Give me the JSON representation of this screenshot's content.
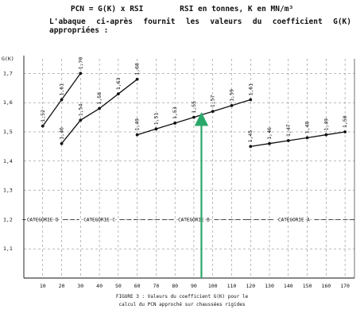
{
  "header": {
    "formula": "PCN = G(K) x RSI",
    "units": "RSI en tonnes, K en MN/m³",
    "intro_line1": "L'abaque ci-après fournit les valeurs du coefficient G(K)",
    "intro_line2": "appropriées :"
  },
  "caption": {
    "line1": "FIGURE 3 : Valeurs du coefficient G(K) pour le",
    "line2": "calcul du PCN approché sur chaussées rigides"
  },
  "chart_data": {
    "type": "line",
    "ylabel": "G(K)",
    "xlabel": "",
    "xlim": [
      0,
      175
    ],
    "ylim": [
      1.0,
      1.75
    ],
    "x_ticks": [
      10,
      20,
      30,
      40,
      50,
      60,
      70,
      80,
      90,
      100,
      110,
      120,
      130,
      140,
      150,
      160,
      170
    ],
    "y_ticks": [
      "1,1",
      "1,2",
      "1,3",
      "1,4",
      "1,5",
      "1,6",
      "1,7"
    ],
    "grid": true,
    "grid_style": "dashed",
    "line_color": "#111111",
    "arrow_color": "#2aa86a",
    "categories_row": {
      "y": 1.2,
      "labels": [
        {
          "label": "CATEGORIE D",
          "x": 10,
          "x_from": 0,
          "x_to": 28
        },
        {
          "label": "CATEGORIE C",
          "x": 40,
          "x_from": 28,
          "x_to": 58
        },
        {
          "label": "CATEGORIE B",
          "x": 90,
          "x_from": 58,
          "x_to": 118
        },
        {
          "label": "CATEGORIE A",
          "x": 143,
          "x_from": 118,
          "x_to": 175
        }
      ]
    },
    "series": [
      {
        "points": [
          {
            "x": 10,
            "y": 1.52,
            "label": "1,52"
          },
          {
            "x": 20,
            "y": 1.61,
            "label": "1,61"
          },
          {
            "x": 30,
            "y": 1.7,
            "label": "1,70"
          }
        ]
      },
      {
        "points": [
          {
            "x": 20,
            "y": 1.46,
            "label": "1,46"
          },
          {
            "x": 30,
            "y": 1.54,
            "label": "1,54"
          },
          {
            "x": 40,
            "y": 1.58,
            "label": "1,58"
          },
          {
            "x": 50,
            "y": 1.63,
            "label": "1,63"
          },
          {
            "x": 60,
            "y": 1.68,
            "label": "1,68"
          }
        ]
      },
      {
        "points": [
          {
            "x": 60,
            "y": 1.49,
            "label": "1,49"
          },
          {
            "x": 70,
            "y": 1.51,
            "label": "1,51"
          },
          {
            "x": 80,
            "y": 1.53,
            "label": "1,53"
          },
          {
            "x": 90,
            "y": 1.55,
            "label": "1,55"
          },
          {
            "x": 100,
            "y": 1.57,
            "label": "1,57"
          },
          {
            "x": 110,
            "y": 1.59,
            "label": "1,59"
          },
          {
            "x": 120,
            "y": 1.61,
            "label": "1,61"
          }
        ]
      },
      {
        "points": [
          {
            "x": 120,
            "y": 1.45,
            "label": "1,45"
          },
          {
            "x": 130,
            "y": 1.46,
            "label": "1,46"
          },
          {
            "x": 140,
            "y": 1.47,
            "label": "1,47"
          },
          {
            "x": 150,
            "y": 1.48,
            "label": "1,48"
          },
          {
            "x": 160,
            "y": 1.49,
            "label": "1,49"
          },
          {
            "x": 170,
            "y": 1.5,
            "label": "1,50"
          }
        ]
      }
    ],
    "annotation_arrow": {
      "x": 94,
      "y_from": 1.0,
      "y_to": 1.56
    }
  }
}
